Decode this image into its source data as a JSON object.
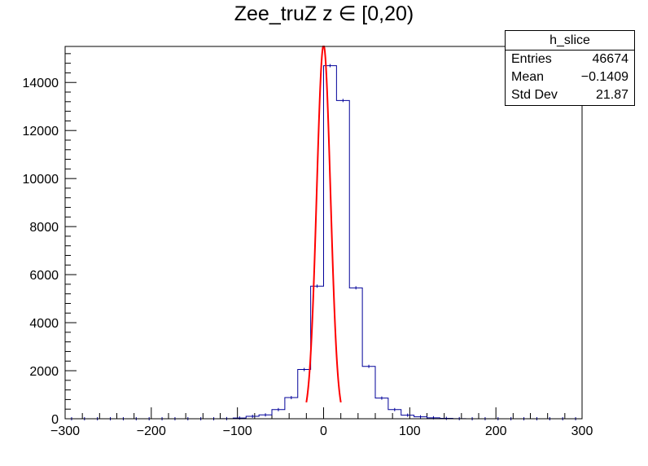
{
  "chart_data": {
    "type": "bar",
    "title": "Zee_truZ z  ∈ [0,20)",
    "xlabel": "",
    "ylabel": "",
    "xlim": [
      -300,
      300
    ],
    "ylim": [
      0,
      15500
    ],
    "x_ticks": [
      "−300",
      "−200",
      "−100",
      "0",
      "100",
      "200",
      "300"
    ],
    "y_ticks": [
      "0",
      "2000",
      "4000",
      "6000",
      "8000",
      "10000",
      "12000",
      "14000"
    ],
    "bin_edges": [
      -300,
      -285,
      -270,
      -255,
      -240,
      -225,
      -210,
      -195,
      -180,
      -165,
      -150,
      -135,
      -120,
      -105,
      -90,
      -75,
      -60,
      -45,
      -30,
      -15,
      0,
      15,
      30,
      45,
      60,
      75,
      90,
      105,
      120,
      135,
      150,
      165,
      180,
      195,
      210,
      225,
      240,
      255,
      270,
      285,
      300
    ],
    "values": [
      0,
      0,
      0,
      0,
      0,
      0,
      0,
      0,
      0,
      0,
      0,
      0,
      5,
      30,
      100,
      160,
      380,
      880,
      2050,
      5520,
      14700,
      13250,
      5450,
      2180,
      860,
      380,
      150,
      80,
      40,
      15,
      5,
      0,
      0,
      0,
      0,
      0,
      0,
      0,
      0,
      0
    ],
    "fit": {
      "type": "gaussian",
      "constant": 15550,
      "mean": 0,
      "sigma": 8.0,
      "range": [
        -20,
        20
      ],
      "color": "#ff0000"
    },
    "hist_color": "#000099",
    "stats": {
      "name": "h_slice",
      "rows": [
        {
          "label": "Entries",
          "value": "46674"
        },
        {
          "label": "Mean",
          "value": "−0.1409"
        },
        {
          "label": "Std Dev",
          "value": "21.87"
        }
      ]
    }
  }
}
